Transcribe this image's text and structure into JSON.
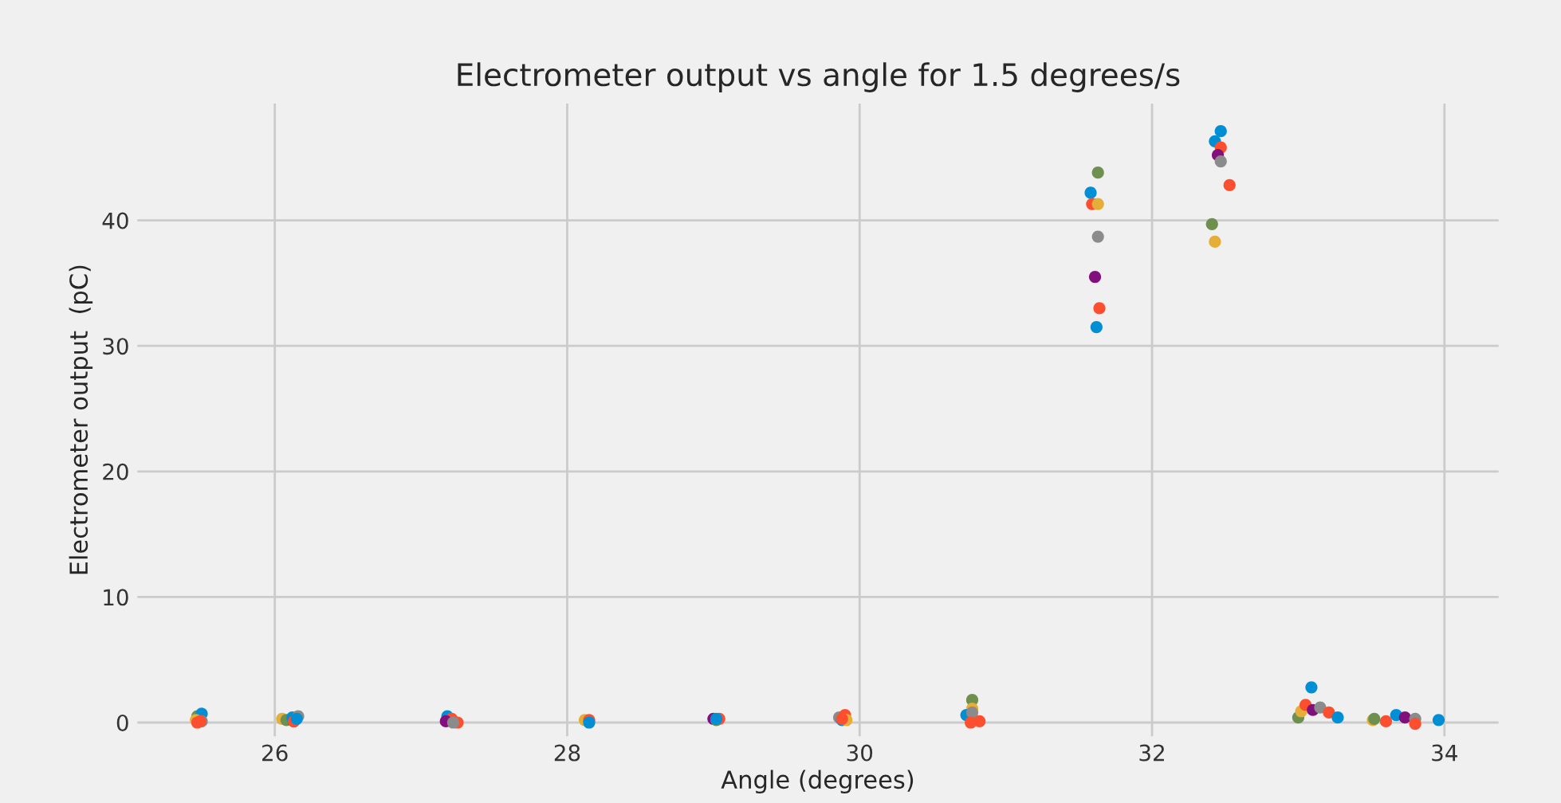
{
  "chart_data": {
    "type": "scatter",
    "title": "Electrometer output vs angle for 1.5 degrees/s",
    "xlabel": "Angle (degrees)",
    "ylabel": "Electrometer output  (pC)",
    "x": [
      25.47,
      25.5,
      25.46,
      25.47,
      25.5,
      25.49,
      26.05,
      26.08,
      26.12,
      26.13,
      26.13,
      26.16,
      26.15,
      27.18,
      27.21,
      27.17,
      27.25,
      27.22,
      28.12,
      28.15,
      28.15,
      29.0,
      29.02,
      29.04,
      29.02,
      29.86,
      29.9,
      29.88,
      29.91,
      29.88,
      30.77,
      30.77,
      30.73,
      30.77,
      30.76,
      30.82,
      31.63,
      31.58,
      31.59,
      31.63,
      31.63,
      31.61,
      31.64,
      31.62,
      32.47,
      32.43,
      32.47,
      32.45,
      32.47,
      32.53,
      32.41,
      32.43,
      33.0,
      33.02,
      33.05,
      33.09,
      33.1,
      33.15,
      33.21,
      33.27,
      33.51,
      33.52,
      33.6,
      33.67,
      33.73,
      33.8,
      33.8,
      33.96
    ],
    "values": [
      0.5,
      0.7,
      0.2,
      0.0,
      0.1,
      0.1,
      0.3,
      0.2,
      0.4,
      0.1,
      0.1,
      0.5,
      0.3,
      0.5,
      0.3,
      0.1,
      0.0,
      0.0,
      0.2,
      0.2,
      0.0,
      0.3,
      0.2,
      0.3,
      0.3,
      0.4,
      0.6,
      0.2,
      0.2,
      0.3,
      1.8,
      1.1,
      0.6,
      0.8,
      0.0,
      0.1,
      43.8,
      42.2,
      41.3,
      41.3,
      38.7,
      35.5,
      33.0,
      31.5,
      47.1,
      46.3,
      45.8,
      45.2,
      44.7,
      42.8,
      39.7,
      38.3,
      0.4,
      0.9,
      1.4,
      2.8,
      1.0,
      1.2,
      0.8,
      0.4,
      0.2,
      0.3,
      0.1,
      0.6,
      0.4,
      0.3,
      -0.1,
      0.2
    ],
    "colors": [
      "#6d904f",
      "#008fd5",
      "#e5ae38",
      "#fc4f30",
      "#8b8b8b",
      "#fc4f30",
      "#e5ae38",
      "#6d904f",
      "#008fd5",
      "#810f7c",
      "#fc4f30",
      "#8b8b8b",
      "#008fd5",
      "#008fd5",
      "#fc4f30",
      "#810f7c",
      "#fc4f30",
      "#8b8b8b",
      "#e5ae38",
      "#fc4f30",
      "#008fd5",
      "#810f7c",
      "#6d904f",
      "#fc4f30",
      "#008fd5",
      "#8b8b8b",
      "#fc4f30",
      "#008fd5",
      "#e5ae38",
      "#fc4f30",
      "#6d904f",
      "#e5ae38",
      "#008fd5",
      "#8b8b8b",
      "#fc4f30",
      "#fc4f30",
      "#6d904f",
      "#008fd5",
      "#fc4f30",
      "#e5ae38",
      "#8b8b8b",
      "#810f7c",
      "#fc4f30",
      "#008fd5",
      "#008fd5",
      "#008fd5",
      "#fc4f30",
      "#810f7c",
      "#8b8b8b",
      "#fc4f30",
      "#6d904f",
      "#e5ae38",
      "#6d904f",
      "#e5ae38",
      "#fc4f30",
      "#008fd5",
      "#810f7c",
      "#8b8b8b",
      "#fc4f30",
      "#008fd5",
      "#e5ae38",
      "#6d904f",
      "#fc4f30",
      "#008fd5",
      "#810f7c",
      "#8b8b8b",
      "#fc4f30",
      "#008fd5"
    ],
    "xlim": [
      25.06,
      34.37
    ],
    "ylim": [
      -1.1,
      49.3
    ],
    "xticks": [
      26,
      28,
      30,
      32,
      34
    ],
    "yticks": [
      0,
      10,
      20,
      30,
      40
    ],
    "grid": true,
    "marker": "circle"
  }
}
